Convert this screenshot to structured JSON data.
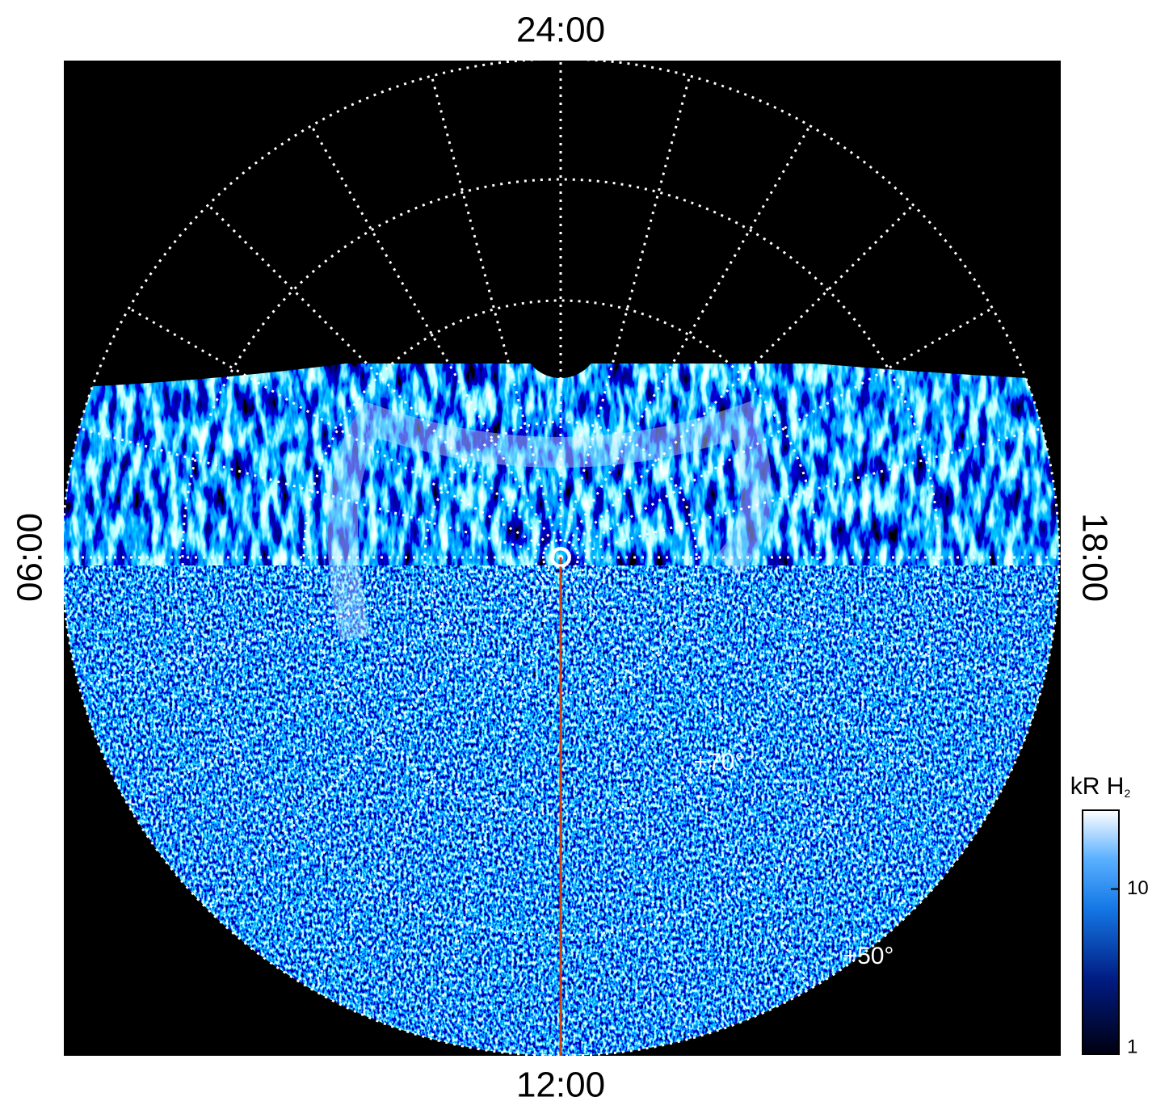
{
  "labels": {
    "top": "24:00",
    "bottom": "12:00",
    "left": "06:00",
    "right": "18:00"
  },
  "latitude_labels": [
    "+70°",
    "+50°"
  ],
  "colorbar": {
    "title": "kR H",
    "title_subscript": "2",
    "lim": [
      1,
      30
    ],
    "ticks": [
      1,
      10
    ],
    "scale": "log"
  }
}
